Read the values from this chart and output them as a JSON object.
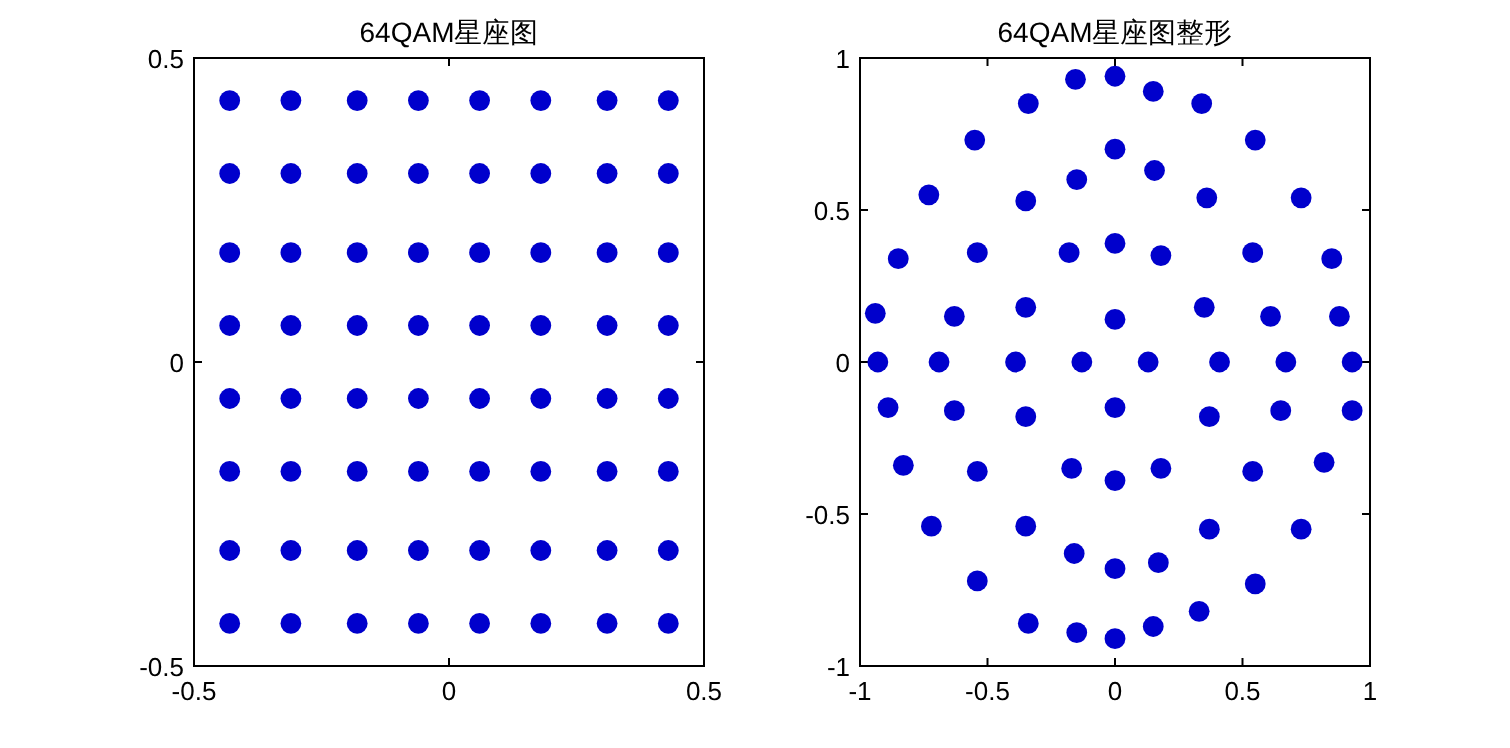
{
  "chart_data": [
    {
      "type": "scatter",
      "title": "64QAM星座图",
      "marker": "circle",
      "xlim": [
        -0.5,
        0.5
      ],
      "ylim": [
        -0.5,
        0.5
      ],
      "xticks": [
        -0.5,
        0,
        0.5
      ],
      "yticks": [
        -0.5,
        0,
        0.5
      ],
      "series": [
        {
          "color": "#0000cc",
          "x": [
            -0.43,
            -0.31,
            -0.18,
            -0.06,
            0.06,
            0.18,
            0.31,
            0.43,
            -0.43,
            -0.31,
            -0.18,
            -0.06,
            0.06,
            0.18,
            0.31,
            0.43,
            -0.43,
            -0.31,
            -0.18,
            -0.06,
            0.06,
            0.18,
            0.31,
            0.43,
            -0.43,
            -0.31,
            -0.18,
            -0.06,
            0.06,
            0.18,
            0.31,
            0.43,
            -0.43,
            -0.31,
            -0.18,
            -0.06,
            0.06,
            0.18,
            0.31,
            0.43,
            -0.43,
            -0.31,
            -0.18,
            -0.06,
            0.06,
            0.18,
            0.31,
            0.43,
            -0.43,
            -0.31,
            -0.18,
            -0.06,
            0.06,
            0.18,
            0.31,
            0.43,
            -0.43,
            -0.31,
            -0.18,
            -0.06,
            0.06,
            0.18,
            0.31,
            0.43
          ],
          "values": [
            0.43,
            0.43,
            0.43,
            0.43,
            0.43,
            0.43,
            0.43,
            0.43,
            0.31,
            0.31,
            0.31,
            0.31,
            0.31,
            0.31,
            0.31,
            0.31,
            0.18,
            0.18,
            0.18,
            0.18,
            0.18,
            0.18,
            0.18,
            0.18,
            0.06,
            0.06,
            0.06,
            0.06,
            0.06,
            0.06,
            0.06,
            0.06,
            -0.06,
            -0.06,
            -0.06,
            -0.06,
            -0.06,
            -0.06,
            -0.06,
            -0.06,
            -0.18,
            -0.18,
            -0.18,
            -0.18,
            -0.18,
            -0.18,
            -0.18,
            -0.18,
            -0.31,
            -0.31,
            -0.31,
            -0.31,
            -0.31,
            -0.31,
            -0.31,
            -0.31,
            -0.43,
            -0.43,
            -0.43,
            -0.43,
            -0.43,
            -0.43,
            -0.43,
            -0.43
          ]
        }
      ]
    },
    {
      "type": "scatter",
      "title": "64QAM星座图整形",
      "marker": "circle",
      "xlim": [
        -1,
        1
      ],
      "ylim": [
        -1,
        1
      ],
      "xticks": [
        -1,
        -0.5,
        0,
        0.5,
        1
      ],
      "yticks": [
        -1,
        -0.5,
        0,
        0.5,
        1
      ],
      "series": [
        {
          "color": "#0000cc",
          "x": [
            -0.155,
            0,
            0.15,
            0.34,
            -0.34,
            -0.55,
            0.55,
            0,
            -0.15,
            0.155,
            -0.35,
            0.36,
            -0.73,
            0.73,
            -0.85,
            -0.54,
            -0.18,
            0,
            0.18,
            0.54,
            0.85,
            -0.94,
            -0.63,
            -0.35,
            0,
            0.35,
            0.61,
            0.88,
            -0.93,
            -0.69,
            -0.39,
            -0.13,
            0.13,
            0.41,
            0.67,
            0.93,
            -0.89,
            -0.63,
            -0.35,
            0,
            0.37,
            0.65,
            0.93,
            -0.83,
            -0.54,
            -0.17,
            0,
            0.18,
            0.54,
            0.82,
            -0.72,
            -0.35,
            0.37,
            0.73,
            -0.16,
            0,
            0.17,
            -0.54,
            0.55,
            0.33,
            -0.34,
            -0.15,
            0,
            0.15
          ],
          "values": [
            0.93,
            0.94,
            0.89,
            0.85,
            0.85,
            0.73,
            0.73,
            0.7,
            0.6,
            0.63,
            0.53,
            0.54,
            0.55,
            0.54,
            0.34,
            0.36,
            0.36,
            0.39,
            0.35,
            0.36,
            0.34,
            0.16,
            0.15,
            0.18,
            0.14,
            0.18,
            0.15,
            0.15,
            0,
            0,
            0,
            0,
            0,
            0,
            0,
            0,
            -0.15,
            -0.16,
            -0.18,
            -0.15,
            -0.18,
            -0.16,
            -0.16,
            -0.34,
            -0.36,
            -0.35,
            -0.39,
            -0.35,
            -0.36,
            -0.33,
            -0.54,
            -0.54,
            -0.55,
            -0.55,
            -0.63,
            -0.68,
            -0.66,
            -0.72,
            -0.73,
            -0.82,
            -0.86,
            -0.89,
            -0.91,
            -0.87
          ]
        }
      ]
    }
  ]
}
